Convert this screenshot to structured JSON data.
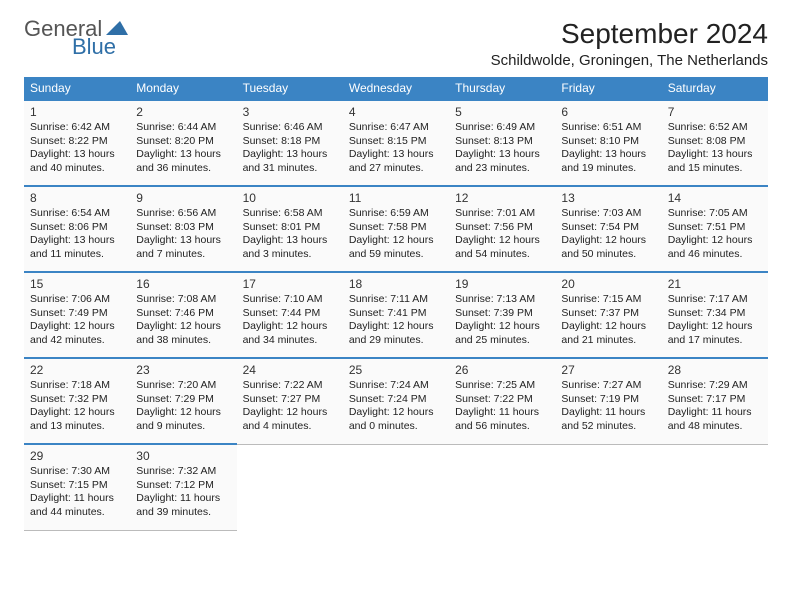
{
  "logo": {
    "text1": "General",
    "text2": "Blue"
  },
  "title": "September 2024",
  "location": "Schildwolde, Groningen, The Netherlands",
  "colors": {
    "header_bg": "#3b84c4",
    "header_text": "#ffffff",
    "row_border": "#3b84c4",
    "cell_bg": "#fafafa",
    "text": "#222222"
  },
  "typography": {
    "title_fontsize": 28,
    "location_fontsize": 15,
    "dayheader_fontsize": 12,
    "daynum_fontsize": 12,
    "info_fontsize": 10.5
  },
  "day_headers": [
    "Sunday",
    "Monday",
    "Tuesday",
    "Wednesday",
    "Thursday",
    "Friday",
    "Saturday"
  ],
  "weeks": [
    [
      {
        "n": "1",
        "sunrise": "6:42 AM",
        "sunset": "8:22 PM",
        "daylight": "13 hours and 40 minutes."
      },
      {
        "n": "2",
        "sunrise": "6:44 AM",
        "sunset": "8:20 PM",
        "daylight": "13 hours and 36 minutes."
      },
      {
        "n": "3",
        "sunrise": "6:46 AM",
        "sunset": "8:18 PM",
        "daylight": "13 hours and 31 minutes."
      },
      {
        "n": "4",
        "sunrise": "6:47 AM",
        "sunset": "8:15 PM",
        "daylight": "13 hours and 27 minutes."
      },
      {
        "n": "5",
        "sunrise": "6:49 AM",
        "sunset": "8:13 PM",
        "daylight": "13 hours and 23 minutes."
      },
      {
        "n": "6",
        "sunrise": "6:51 AM",
        "sunset": "8:10 PM",
        "daylight": "13 hours and 19 minutes."
      },
      {
        "n": "7",
        "sunrise": "6:52 AM",
        "sunset": "8:08 PM",
        "daylight": "13 hours and 15 minutes."
      }
    ],
    [
      {
        "n": "8",
        "sunrise": "6:54 AM",
        "sunset": "8:06 PM",
        "daylight": "13 hours and 11 minutes."
      },
      {
        "n": "9",
        "sunrise": "6:56 AM",
        "sunset": "8:03 PM",
        "daylight": "13 hours and 7 minutes."
      },
      {
        "n": "10",
        "sunrise": "6:58 AM",
        "sunset": "8:01 PM",
        "daylight": "13 hours and 3 minutes."
      },
      {
        "n": "11",
        "sunrise": "6:59 AM",
        "sunset": "7:58 PM",
        "daylight": "12 hours and 59 minutes."
      },
      {
        "n": "12",
        "sunrise": "7:01 AM",
        "sunset": "7:56 PM",
        "daylight": "12 hours and 54 minutes."
      },
      {
        "n": "13",
        "sunrise": "7:03 AM",
        "sunset": "7:54 PM",
        "daylight": "12 hours and 50 minutes."
      },
      {
        "n": "14",
        "sunrise": "7:05 AM",
        "sunset": "7:51 PM",
        "daylight": "12 hours and 46 minutes."
      }
    ],
    [
      {
        "n": "15",
        "sunrise": "7:06 AM",
        "sunset": "7:49 PM",
        "daylight": "12 hours and 42 minutes."
      },
      {
        "n": "16",
        "sunrise": "7:08 AM",
        "sunset": "7:46 PM",
        "daylight": "12 hours and 38 minutes."
      },
      {
        "n": "17",
        "sunrise": "7:10 AM",
        "sunset": "7:44 PM",
        "daylight": "12 hours and 34 minutes."
      },
      {
        "n": "18",
        "sunrise": "7:11 AM",
        "sunset": "7:41 PM",
        "daylight": "12 hours and 29 minutes."
      },
      {
        "n": "19",
        "sunrise": "7:13 AM",
        "sunset": "7:39 PM",
        "daylight": "12 hours and 25 minutes."
      },
      {
        "n": "20",
        "sunrise": "7:15 AM",
        "sunset": "7:37 PM",
        "daylight": "12 hours and 21 minutes."
      },
      {
        "n": "21",
        "sunrise": "7:17 AM",
        "sunset": "7:34 PM",
        "daylight": "12 hours and 17 minutes."
      }
    ],
    [
      {
        "n": "22",
        "sunrise": "7:18 AM",
        "sunset": "7:32 PM",
        "daylight": "12 hours and 13 minutes."
      },
      {
        "n": "23",
        "sunrise": "7:20 AM",
        "sunset": "7:29 PM",
        "daylight": "12 hours and 9 minutes."
      },
      {
        "n": "24",
        "sunrise": "7:22 AM",
        "sunset": "7:27 PM",
        "daylight": "12 hours and 4 minutes."
      },
      {
        "n": "25",
        "sunrise": "7:24 AM",
        "sunset": "7:24 PM",
        "daylight": "12 hours and 0 minutes."
      },
      {
        "n": "26",
        "sunrise": "7:25 AM",
        "sunset": "7:22 PM",
        "daylight": "11 hours and 56 minutes."
      },
      {
        "n": "27",
        "sunrise": "7:27 AM",
        "sunset": "7:19 PM",
        "daylight": "11 hours and 52 minutes."
      },
      {
        "n": "28",
        "sunrise": "7:29 AM",
        "sunset": "7:17 PM",
        "daylight": "11 hours and 48 minutes."
      }
    ],
    [
      {
        "n": "29",
        "sunrise": "7:30 AM",
        "sunset": "7:15 PM",
        "daylight": "11 hours and 44 minutes."
      },
      {
        "n": "30",
        "sunrise": "7:32 AM",
        "sunset": "7:12 PM",
        "daylight": "11 hours and 39 minutes."
      },
      null,
      null,
      null,
      null,
      null
    ]
  ],
  "labels": {
    "sunrise": "Sunrise: ",
    "sunset": "Sunset: ",
    "daylight": "Daylight: "
  }
}
